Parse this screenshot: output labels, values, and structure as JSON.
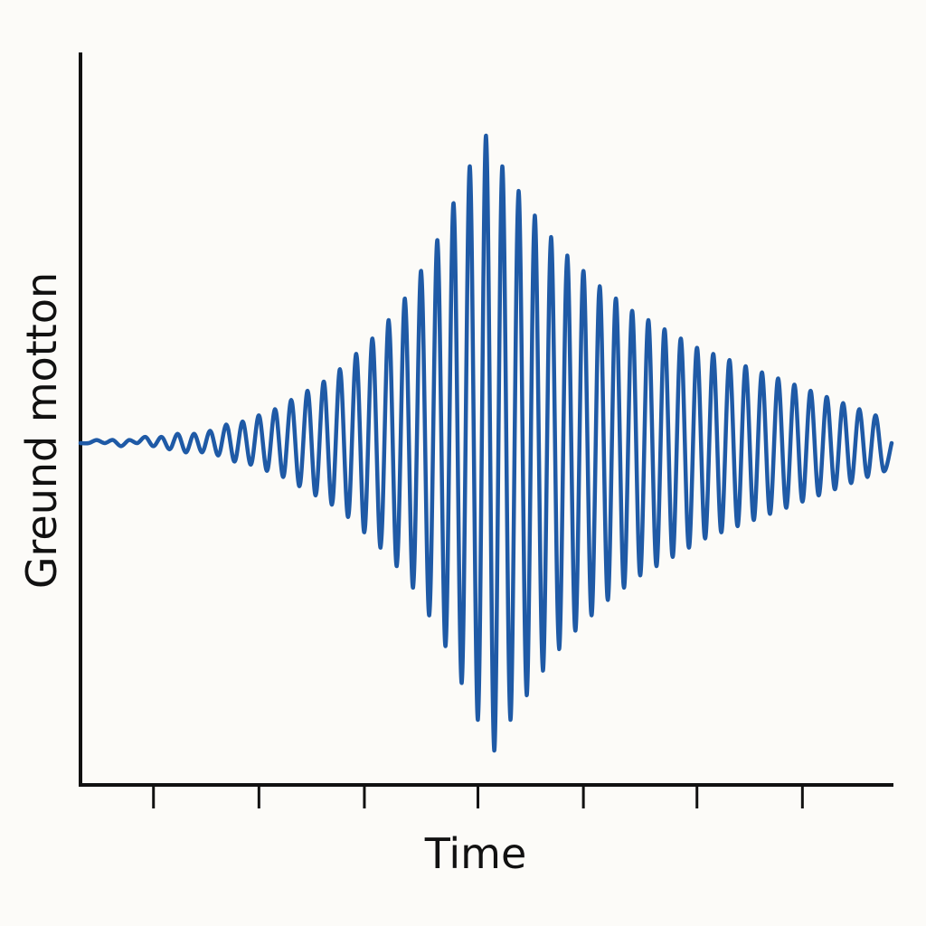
{
  "chart_data": {
    "type": "line",
    "title": "",
    "xlabel": "Time",
    "ylabel": "Greund motton",
    "grid": false,
    "legend": "none",
    "xlim": [
      0,
      100
    ],
    "ylim": [
      -100,
      100
    ],
    "x_ticks": [
      9,
      22,
      35,
      49,
      62,
      76,
      89
    ],
    "colors": {
      "trace": "#1f5aa6",
      "axis": "#111111"
    },
    "series": [
      {
        "x": [
          0,
          1,
          2,
          3,
          4,
          5,
          6,
          7,
          8,
          9,
          10,
          11,
          12,
          13,
          14,
          15,
          16,
          17,
          18,
          19,
          20,
          21,
          22,
          23,
          24,
          25,
          26,
          27,
          28,
          29,
          30,
          31,
          32,
          33,
          34,
          35,
          36,
          37,
          38,
          39,
          40,
          41,
          42,
          43,
          44,
          45,
          46,
          47,
          48,
          49,
          50,
          51,
          52,
          53,
          54,
          55,
          56,
          57,
          58,
          59,
          60,
          61,
          62,
          63,
          64,
          65,
          66,
          67,
          68,
          69,
          70,
          71,
          72,
          73,
          74,
          75,
          76,
          77,
          78,
          79,
          80,
          81,
          82,
          83,
          84,
          85,
          86,
          87,
          88,
          89,
          90,
          91,
          92,
          93,
          94,
          95,
          96,
          97,
          98,
          99,
          100
        ],
        "values": [
          0,
          0,
          1,
          0,
          1,
          -1,
          1,
          0,
          2,
          -1,
          2,
          -2,
          3,
          -3,
          3,
          -3,
          4,
          -4,
          6,
          -6,
          7,
          -7,
          9,
          -9,
          11,
          -11,
          14,
          -14,
          17,
          -17,
          20,
          -20,
          24,
          -24,
          29,
          -29,
          34,
          -34,
          40,
          -40,
          47,
          -47,
          56,
          -56,
          66,
          -66,
          78,
          -78,
          90,
          -90,
          100,
          -100,
          90,
          -90,
          82,
          -82,
          74,
          -74,
          67,
          -67,
          61,
          -61,
          56,
          -56,
          51,
          -51,
          47,
          -47,
          43,
          -43,
          40,
          -40,
          37,
          -37,
          34,
          -34,
          31,
          -31,
          29,
          -29,
          27,
          -27,
          25,
          -25,
          23,
          -23,
          21,
          -21,
          19,
          -19,
          17,
          -17,
          15,
          -15,
          13,
          -13,
          11,
          -11,
          9,
          -9,
          0
        ]
      }
    ]
  }
}
